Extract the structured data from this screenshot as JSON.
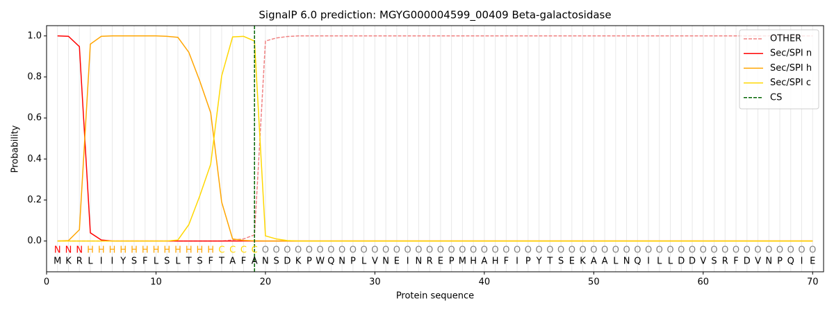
{
  "chart_data": {
    "type": "line",
    "title": "SignalP 6.0 prediction: MGYG000004599_00409 Beta-galactosidase",
    "x_label": "Protein sequence",
    "y_label": "Probability",
    "xlim": [
      0,
      71
    ],
    "ylim": [
      -0.15,
      1.05
    ],
    "xticks": [
      0,
      10,
      20,
      30,
      40,
      50,
      60,
      70
    ],
    "yticks": [
      {
        "value": 0,
        "label": "0.0"
      },
      0.2,
      0.4,
      0.6,
      0.8,
      {
        "value": 1,
        "label": "1.0"
      }
    ],
    "x": [
      1,
      2,
      3,
      4,
      5,
      6,
      7,
      8,
      9,
      10,
      11,
      12,
      13,
      14,
      15,
      16,
      17,
      18,
      19,
      20,
      21,
      22,
      23,
      24,
      25,
      26,
      27,
      28,
      29,
      30,
      31,
      32,
      33,
      34,
      35,
      36,
      37,
      38,
      39,
      40,
      41,
      42,
      43,
      44,
      45,
      46,
      47,
      48,
      49,
      50,
      51,
      52,
      53,
      54,
      55,
      56,
      57,
      58,
      59,
      60,
      61,
      62,
      63,
      64,
      65,
      66,
      67,
      68,
      69,
      70
    ],
    "sequence": [
      "M",
      "K",
      "R",
      "L",
      "I",
      "I",
      "Y",
      "S",
      "F",
      "L",
      "S",
      "L",
      "T",
      "S",
      "F",
      "T",
      "A",
      "F",
      "A",
      "N",
      "S",
      "D",
      "K",
      "P",
      "W",
      "Q",
      "N",
      "P",
      "L",
      "V",
      "N",
      "E",
      "I",
      "N",
      "R",
      "E",
      "P",
      "M",
      "H",
      "A",
      "H",
      "F",
      "I",
      "P",
      "Y",
      "T",
      "S",
      "E",
      "K",
      "A",
      "A",
      "L",
      "N",
      "Q",
      "I",
      "L",
      "L",
      "D",
      "D",
      "V",
      "S",
      "R",
      "F",
      "D",
      "V",
      "N",
      "P",
      "Q",
      "I",
      "E"
    ],
    "regions": [
      "N",
      "N",
      "N",
      "H",
      "H",
      "H",
      "H",
      "H",
      "H",
      "H",
      "H",
      "H",
      "H",
      "H",
      "H",
      "C",
      "C",
      "C",
      "C",
      "O",
      "O",
      "O",
      "O",
      "O",
      "O",
      "O",
      "O",
      "O",
      "O",
      "O",
      "O",
      "O",
      "O",
      "O",
      "O",
      "O",
      "O",
      "O",
      "O",
      "O",
      "O",
      "O",
      "O",
      "O",
      "O",
      "O",
      "O",
      "O",
      "O",
      "O",
      "O",
      "O",
      "O",
      "O",
      "O",
      "O",
      "O",
      "O",
      "O",
      "O",
      "O",
      "O",
      "O",
      "O",
      "O",
      "O",
      "O",
      "O",
      "O",
      "O"
    ],
    "region_colors": {
      "N": "#ff0000",
      "H": "#ffa500",
      "C": "#ffd700",
      "O": "#808080"
    },
    "series": [
      {
        "name": "OTHER",
        "color": "#f08080",
        "dashed": true,
        "values": [
          0,
          0,
          0,
          0,
          0,
          0,
          0,
          0,
          0,
          0,
          0,
          0,
          0,
          0,
          0,
          0,
          0.005,
          0.01,
          0.03,
          0.975,
          0.99,
          0.997,
          1,
          1,
          1,
          1,
          1,
          1,
          1,
          1,
          1,
          1,
          1,
          1,
          1,
          1,
          1,
          1,
          1,
          1,
          1,
          1,
          1,
          1,
          1,
          1,
          1,
          1,
          1,
          1,
          1,
          1,
          1,
          1,
          1,
          1,
          1,
          1,
          1,
          1,
          1,
          1,
          1,
          1,
          1,
          1,
          1,
          1,
          1,
          1
        ]
      },
      {
        "name": "Sec/SPI n",
        "color": "#ff0000",
        "values": [
          1,
          0.998,
          0.948,
          0.04,
          0.005,
          0,
          0,
          0,
          0,
          0,
          0,
          0,
          0,
          0,
          0,
          0,
          0,
          0,
          0,
          0,
          0,
          0,
          0,
          0,
          0,
          0,
          0,
          0,
          0,
          0,
          0,
          0,
          0,
          0,
          0,
          0,
          0,
          0,
          0,
          0,
          0,
          0,
          0,
          0,
          0,
          0,
          0,
          0,
          0,
          0,
          0,
          0,
          0,
          0,
          0,
          0,
          0,
          0,
          0,
          0,
          0,
          0,
          0,
          0,
          0,
          0,
          0,
          0,
          0,
          0
        ]
      },
      {
        "name": "Sec/SPI h",
        "color": "#ffa500",
        "values": [
          0,
          0.002,
          0.055,
          0.96,
          0.998,
          1,
          1,
          1,
          1,
          1,
          0.998,
          0.993,
          0.92,
          0.78,
          0.625,
          0.19,
          0.01,
          0.003,
          0.001,
          0,
          0,
          0,
          0,
          0,
          0,
          0,
          0,
          0,
          0,
          0,
          0,
          0,
          0,
          0,
          0,
          0,
          0,
          0,
          0,
          0,
          0,
          0,
          0,
          0,
          0,
          0,
          0,
          0,
          0,
          0,
          0,
          0,
          0,
          0,
          0,
          0,
          0,
          0,
          0,
          0,
          0,
          0,
          0,
          0,
          0,
          0,
          0,
          0,
          0,
          0
        ]
      },
      {
        "name": "Sec/SPI c",
        "color": "#ffd700",
        "values": [
          0,
          0,
          0,
          0,
          0,
          0,
          0,
          0,
          0,
          0,
          0,
          0.005,
          0.08,
          0.22,
          0.375,
          0.805,
          0.995,
          0.998,
          0.975,
          0.025,
          0.01,
          0.002,
          0,
          0,
          0,
          0,
          0,
          0,
          0,
          0,
          0,
          0,
          0,
          0,
          0,
          0,
          0,
          0,
          0,
          0,
          0,
          0,
          0,
          0,
          0,
          0,
          0,
          0,
          0,
          0,
          0,
          0,
          0,
          0,
          0,
          0,
          0,
          0,
          0,
          0,
          0,
          0,
          0,
          0,
          0,
          0,
          0,
          0,
          0,
          0
        ]
      }
    ],
    "cs": {
      "name": "CS",
      "x": 19,
      "color": "#006400"
    },
    "legend": "upper right"
  }
}
